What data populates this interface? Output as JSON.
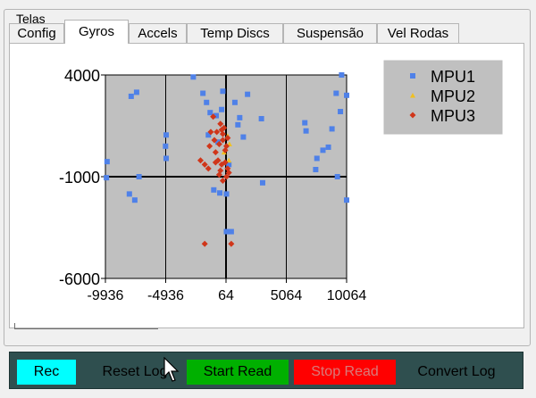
{
  "window": {
    "group_title": "Telas"
  },
  "tabs": [
    {
      "label": "Config"
    },
    {
      "label": "Gyros"
    },
    {
      "label": "Accels"
    },
    {
      "label": "Temp Discs"
    },
    {
      "label": "Suspensão"
    },
    {
      "label": "Vel Rodas"
    }
  ],
  "active_tab": "Gyros",
  "colors": {
    "plot_bg": "#c0c0c0",
    "legend_bg": "#c0c0c0",
    "mpu1": "#4f81e8",
    "mpu2": "#f0c020",
    "mpu3": "#d0361a",
    "bottombar": "#2f4f4f",
    "rec_bg": "#00ffff",
    "start_bg": "#00b000",
    "stop_bg": "#ff0000"
  },
  "chart_data": {
    "type": "scatter",
    "xlim": [
      -9936,
      10064
    ],
    "ylim": [
      -6000,
      4000
    ],
    "x_ticks": [
      "-9936",
      "-4936",
      "64",
      "5064",
      "10064"
    ],
    "y_ticks": [
      "4000",
      "-1000",
      "-6000"
    ],
    "x_tick_values": [
      -9936,
      -4936,
      64,
      5064,
      10064
    ],
    "y_tick_values": [
      4000,
      -1000,
      -6000
    ],
    "grid": true,
    "legend_position": "top-right",
    "series": [
      {
        "name": "MPU1",
        "marker": "square",
        "points": [
          [
            -9800,
            -260
          ],
          [
            -9850,
            -1050
          ],
          [
            -7800,
            2950
          ],
          [
            -7350,
            3150
          ],
          [
            -7150,
            -1000
          ],
          [
            -7950,
            -1850
          ],
          [
            -7500,
            -2150
          ],
          [
            -4900,
            1050
          ],
          [
            -4950,
            500
          ],
          [
            -4900,
            -100
          ],
          [
            -2650,
            3900
          ],
          [
            -1850,
            3100
          ],
          [
            -1550,
            2650
          ],
          [
            -1400,
            1050
          ],
          [
            -1250,
            2150
          ],
          [
            -750,
            2000
          ],
          [
            -600,
            700
          ],
          [
            -200,
            3200
          ],
          [
            -300,
            2300
          ],
          [
            -950,
            -1650
          ],
          [
            -450,
            -1800
          ],
          [
            100,
            -1850
          ],
          [
            100,
            -3700
          ],
          [
            500,
            -3700
          ],
          [
            300,
            -400
          ],
          [
            800,
            2650
          ],
          [
            1200,
            1900
          ],
          [
            1050,
            1550
          ],
          [
            1500,
            950
          ],
          [
            1850,
            3050
          ],
          [
            3000,
            1850
          ],
          [
            3100,
            -1300
          ],
          [
            6600,
            1650
          ],
          [
            6700,
            1250
          ],
          [
            7500,
            -650
          ],
          [
            7600,
            -100
          ],
          [
            8100,
            300
          ],
          [
            8550,
            450
          ],
          [
            8850,
            1350
          ],
          [
            9300,
            -1000
          ],
          [
            9550,
            2200
          ],
          [
            9200,
            3100
          ],
          [
            9650,
            4300
          ],
          [
            10350,
            3000
          ],
          [
            10450,
            -2150
          ]
        ]
      },
      {
        "name": "MPU2",
        "marker": "triangle",
        "points": [
          [
            200,
            1000
          ],
          [
            350,
            600
          ],
          [
            -100,
            200
          ],
          [
            300,
            -200
          ]
        ]
      },
      {
        "name": "MPU3",
        "marker": "diamond",
        "points": [
          [
            -1000,
            1950
          ],
          [
            -1200,
            1200
          ],
          [
            -900,
            800
          ],
          [
            -1300,
            500
          ],
          [
            -800,
            200
          ],
          [
            -700,
            1200
          ],
          [
            -400,
            1600
          ],
          [
            -300,
            1300
          ],
          [
            -200,
            1100
          ],
          [
            -500,
            600
          ],
          [
            -200,
            800
          ],
          [
            100,
            500
          ],
          [
            200,
            900
          ],
          [
            -100,
            1400
          ],
          [
            0,
            300
          ],
          [
            -600,
            -200
          ],
          [
            -300,
            -400
          ],
          [
            0,
            -300
          ],
          [
            200,
            -600
          ],
          [
            -1700,
            -400
          ],
          [
            -1400,
            -600
          ],
          [
            -800,
            -300
          ],
          [
            -500,
            -900
          ],
          [
            -200,
            -1200
          ],
          [
            300,
            -800
          ],
          [
            -2050,
            -200
          ],
          [
            500,
            -4300
          ],
          [
            -1700,
            -4300
          ],
          [
            -400,
            -700
          ],
          [
            100,
            -1000
          ]
        ]
      }
    ]
  },
  "bottom_bar": {
    "rec_label": "Rec",
    "reset_log_label": "Reset Log",
    "start_read_label": "Start Read",
    "stop_read_label": "Stop Read",
    "convert_log_label": "Convert Log"
  }
}
